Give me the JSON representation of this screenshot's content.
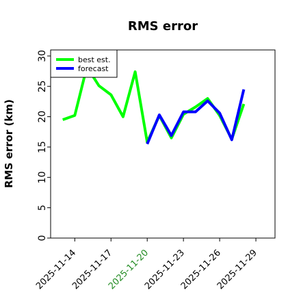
{
  "chart_data": {
    "type": "line",
    "title": "RMS error",
    "xlabel": "",
    "ylabel": "RMS error (km)",
    "ylim": [
      0,
      31
    ],
    "y_ticks": [
      0,
      5,
      10,
      15,
      20,
      25,
      30
    ],
    "x_ticks": [
      "2025-11-14",
      "2025-11-17",
      "2025-11-20",
      "2025-11-23",
      "2025-11-26",
      "2025-11-29"
    ],
    "x_tick_colors": [
      "#000000",
      "#000000",
      "#228B22",
      "#000000",
      "#000000",
      "#000000"
    ],
    "grid": false,
    "legend": "upper-left",
    "series": [
      {
        "name": "best est.",
        "color": "#00ff00",
        "x": [
          "2025-11-13",
          "2025-11-14",
          "2025-11-15",
          "2025-11-16",
          "2025-11-17",
          "2025-11-18",
          "2025-11-19",
          "2025-11-20",
          "2025-11-21",
          "2025-11-22",
          "2025-11-23",
          "2025-11-24",
          "2025-11-25",
          "2025-11-26",
          "2025-11-27",
          "2025-11-28"
        ],
        "y": [
          19.5,
          20.2,
          28.2,
          25.1,
          23.6,
          20.0,
          27.4,
          15.8,
          20.2,
          16.5,
          20.4,
          21.6,
          23.0,
          20.2,
          16.3,
          22.1
        ]
      },
      {
        "name": "forecast",
        "color": "#0000ff",
        "x": [
          "2025-11-20",
          "2025-11-21",
          "2025-11-22",
          "2025-11-23",
          "2025-11-24",
          "2025-11-25",
          "2025-11-26",
          "2025-11-27",
          "2025-11-28"
        ],
        "y": [
          15.5,
          20.3,
          16.9,
          20.8,
          20.8,
          22.6,
          20.6,
          16.2,
          24.5
        ]
      }
    ]
  }
}
